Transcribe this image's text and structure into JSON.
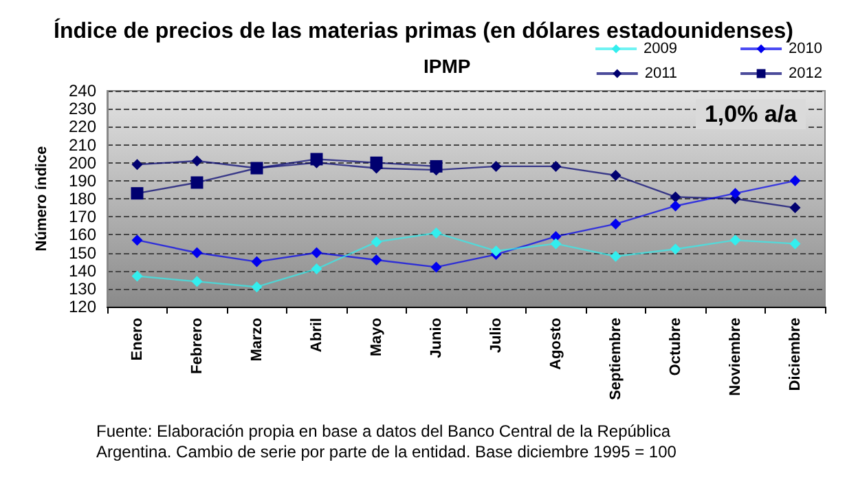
{
  "chart_data": {
    "type": "line",
    "title": "Índice de precios de las materias primas (en dólares estadounidenses)",
    "subtitle": "IPMP",
    "ylabel": "Número índice",
    "annotations": [
      "1,0% a/a",
      "Fuente: Elaboración propia en base a datos del Banco Central de la República\nArgentina. Cambio de serie por parte de la entidad. Base diciembre 1995 = 100"
    ],
    "categories": [
      "Enero",
      "Febrero",
      "Marzo",
      "Abril",
      "Mayo",
      "Junio",
      "Julio",
      "Agosto",
      "Septiembre",
      "Octubre",
      "Noviembre",
      "Diciembre"
    ],
    "series": [
      {
        "name": "2009",
        "color": "#33eeee",
        "marker": "diamond",
        "values": [
          137,
          134,
          131,
          141,
          156,
          161,
          151,
          155,
          148,
          152,
          157,
          155
        ]
      },
      {
        "name": "2010",
        "color": "#0000ee",
        "marker": "diamond",
        "values": [
          157,
          150,
          145,
          150,
          146,
          142,
          149,
          159,
          166,
          176,
          183,
          190
        ]
      },
      {
        "name": "2011",
        "color": "#000070",
        "marker": "diamond",
        "values": [
          199,
          201,
          197,
          200,
          197,
          196,
          198,
          198,
          193,
          181,
          180,
          175
        ]
      },
      {
        "name": "2012",
        "color": "#000070",
        "marker": "square",
        "values": [
          183,
          189,
          197,
          202,
          200,
          198,
          null,
          null,
          null,
          null,
          null,
          null
        ]
      }
    ],
    "ylim": [
      120,
      240
    ],
    "yticks": [
      120,
      130,
      140,
      150,
      160,
      170,
      180,
      190,
      200,
      210,
      220,
      230,
      240
    ],
    "grid": "y",
    "legend": "top right"
  }
}
